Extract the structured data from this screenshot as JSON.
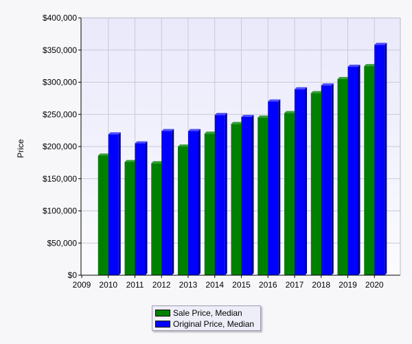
{
  "chart_data": {
    "type": "bar",
    "title": "",
    "xlabel": "",
    "ylabel": "Price",
    "x_ticks": [
      "2009",
      "2010",
      "2011",
      "2012",
      "2013",
      "2014",
      "2015",
      "2016",
      "2017",
      "2018",
      "2019",
      "2020"
    ],
    "categories": [
      "2010",
      "2011",
      "2012",
      "2013",
      "2014",
      "2015",
      "2016",
      "2017",
      "2018",
      "2019",
      "2020"
    ],
    "y_ticks": [
      "$0",
      "$50,000",
      "$100,000",
      "$150,000",
      "$200,000",
      "$250,000",
      "$300,000",
      "$350,000",
      "$400,000"
    ],
    "ylim": [
      0,
      400000
    ],
    "grid": true,
    "legend_position": "bottom-center",
    "series": [
      {
        "name": "Sale Price, Median",
        "color": "#008000",
        "values": [
          186000,
          176000,
          174000,
          200000,
          220000,
          235000,
          245000,
          252000,
          283000,
          305000,
          325000
        ]
      },
      {
        "name": "Original Price, Median",
        "color": "#0000ff",
        "values": [
          219000,
          205000,
          224000,
          224000,
          249000,
          246000,
          270000,
          289000,
          295000,
          324000,
          358000
        ]
      }
    ]
  }
}
